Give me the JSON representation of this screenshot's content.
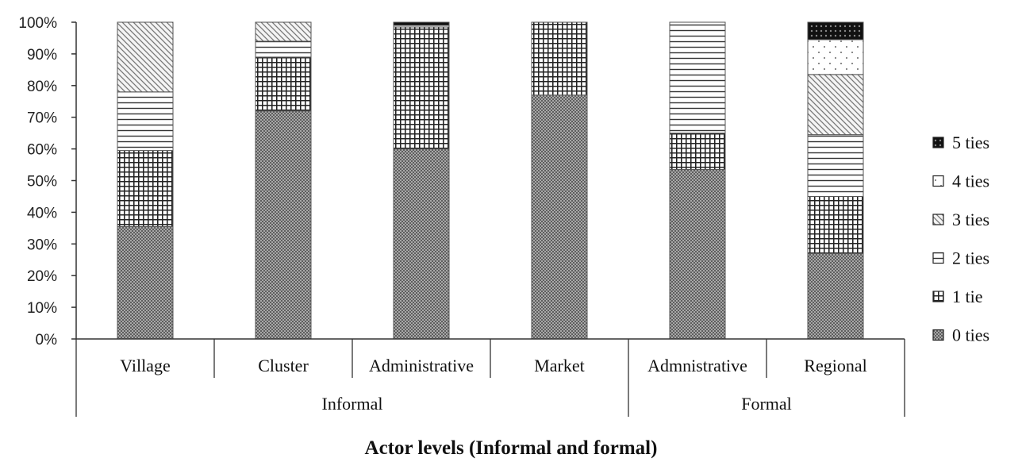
{
  "chart_data": {
    "type": "bar",
    "stacked": true,
    "categories": [
      "Village",
      "Cluster",
      "Administrative",
      "Market",
      "Admnistrative",
      "Regional"
    ],
    "groups": [
      {
        "label": "Informal",
        "categories": [
          "Village",
          "Cluster",
          "Administrative",
          "Market"
        ]
      },
      {
        "label": "Formal",
        "categories": [
          "Admnistrative",
          "Regional"
        ]
      }
    ],
    "series": [
      {
        "name": "0 ties",
        "pattern": "dots-dense",
        "values": [
          35.5,
          72,
          60,
          77,
          53.5,
          27
        ]
      },
      {
        "name": "1 tie",
        "pattern": "grid",
        "values": [
          24,
          17,
          38.5,
          23,
          11.5,
          18
        ]
      },
      {
        "name": "2 ties",
        "pattern": "horizontal-lines",
        "values": [
          18.5,
          5,
          0.5,
          0,
          35,
          19.5
        ]
      },
      {
        "name": "3 ties",
        "pattern": "diagonal-lines",
        "values": [
          22,
          6,
          0,
          0,
          0,
          19
        ]
      },
      {
        "name": "4 ties",
        "pattern": "sparse-dots",
        "values": [
          0,
          0,
          0,
          0,
          0,
          11
        ]
      },
      {
        "name": "5 ties",
        "pattern": "solid-black",
        "values": [
          0,
          0,
          1,
          0,
          0,
          5.5
        ]
      }
    ],
    "yticks": [
      "0%",
      "10%",
      "20%",
      "30%",
      "40%",
      "50%",
      "60%",
      "70%",
      "80%",
      "90%",
      "100%"
    ],
    "ylim": [
      0,
      100
    ],
    "xlabel": "Actor levels (Informal and formal)",
    "ylabel": "",
    "title": "",
    "legend_position": "right",
    "grid": false
  }
}
